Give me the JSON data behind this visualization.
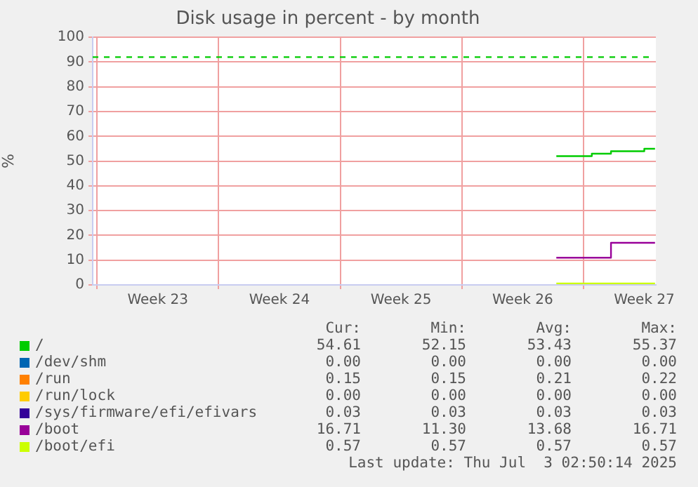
{
  "chart_data": {
    "type": "line",
    "title": "Disk usage in percent - by month",
    "ylabel": "%",
    "xlim": [
      "2025-05-31T18:00",
      "2025-07-03T04:00"
    ],
    "xticks": [
      {
        "value": "2025-06-01",
        "label": null
      },
      {
        "value": "2025-06-04T12:00",
        "label": "Week 23"
      },
      {
        "value": "2025-06-08",
        "label": null
      },
      {
        "value": "2025-06-11T12:00",
        "label": "Week 24"
      },
      {
        "value": "2025-06-15",
        "label": null
      },
      {
        "value": "2025-06-18T12:00",
        "label": "Week 25"
      },
      {
        "value": "2025-06-22",
        "label": null
      },
      {
        "value": "2025-06-25T12:00",
        "label": "Week 26"
      },
      {
        "value": "2025-06-29",
        "label": null
      },
      {
        "value": "2025-07-02T12:00",
        "label": "Week 27"
      }
    ],
    "ylim": [
      0,
      100
    ],
    "yticks": [
      0,
      10,
      20,
      30,
      40,
      50,
      60,
      70,
      80,
      90,
      100
    ],
    "grid": true,
    "legend": "bottom",
    "line_style": "solid",
    "marker": "none",
    "series": [
      {
        "name": "/",
        "color": "#00cc00",
        "x": [
          "2025-06-27T10:30",
          "2025-06-29T11:30",
          "2025-06-29T11:30",
          "2025-06-30T14:00",
          "2025-06-30T14:00",
          "2025-07-02T12:00",
          "2025-07-02T12:00",
          "2025-07-03T02:50"
        ],
        "values": [
          52,
          52,
          53,
          53,
          54,
          54,
          55,
          55
        ]
      },
      {
        "name": "/dev/shm",
        "color": "#0066b3"
      },
      {
        "name": "/run",
        "color": "#ff8000"
      },
      {
        "name": "/run/lock",
        "color": "#ffcc00"
      },
      {
        "name": "/sys/firmware/efi/efivars",
        "color": "#330099"
      },
      {
        "name": "/boot",
        "color": "#990099",
        "x": [
          "2025-06-27T10:30",
          "2025-06-30T14:00",
          "2025-06-30T14:00",
          "2025-07-03T02:50"
        ],
        "values": [
          11,
          11,
          17,
          17
        ]
      },
      {
        "name": "/boot/efi",
        "color": "#ccff00",
        "x": [
          "2025-06-27T10:30",
          "2025-07-03T02:50"
        ],
        "values": [
          0.6,
          0.6
        ]
      }
    ],
    "ref_lines": [
      {
        "axis": "y",
        "value": 92,
        "label": null,
        "color": "#00cc00",
        "line_style": "dashed"
      }
    ],
    "annotations": [
      "Cur:",
      "Min:",
      "Avg:",
      "Max:",
      "54.61",
      "52.15",
      "53.43",
      "55.37",
      "0.00",
      "0.00",
      "0.00",
      "0.00",
      "0.15",
      "0.15",
      "0.21",
      "0.22",
      "0.00",
      "0.00",
      "0.00",
      "0.00",
      "0.03",
      "0.03",
      "0.03",
      "0.03",
      "16.71",
      "11.30",
      "13.68",
      "16.71",
      "0.57",
      "0.57",
      "0.57",
      "0.57",
      "Last update: Thu Jul  3 02:50:14 2025"
    ]
  }
}
